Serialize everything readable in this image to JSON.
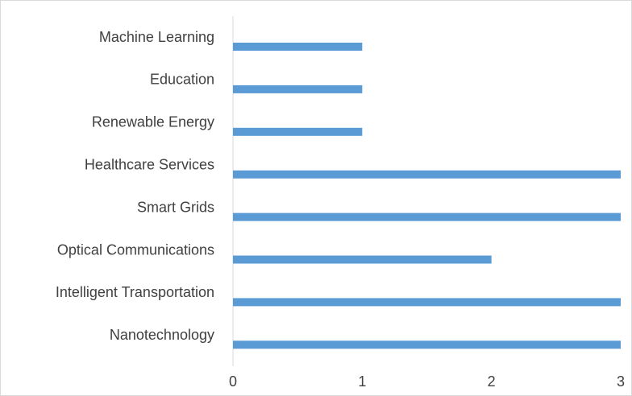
{
  "chart_data": {
    "type": "hbar",
    "categories": [
      "Machine Learning",
      "Education",
      "Renewable Energy",
      "Healthcare Services",
      "Smart Grids",
      "Optical Communications",
      "Intelligent Transportation",
      "Nanotechnology"
    ],
    "values": [
      1,
      1,
      1,
      3,
      3,
      2,
      3,
      3
    ],
    "color": "#5b9bd5",
    "xlim": [
      0,
      3
    ],
    "xticks": [
      0,
      1,
      2,
      3
    ],
    "grid": false
  }
}
